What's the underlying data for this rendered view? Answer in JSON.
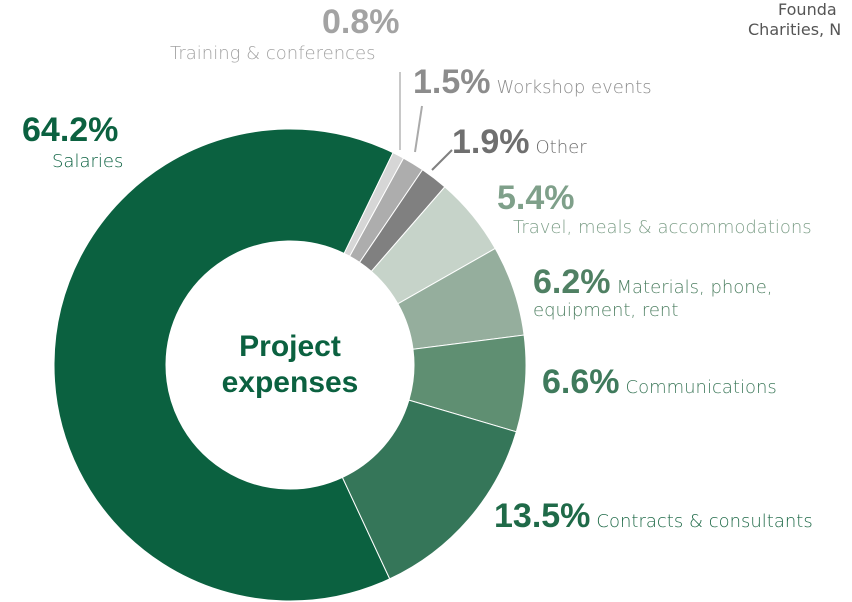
{
  "chart_data": {
    "type": "pie",
    "center_label": [
      "Project",
      "expenses"
    ],
    "categories": [
      "Salaries",
      "Training & conferences",
      "Workshop events",
      "Other",
      "Travel, meals & accommodations",
      "Materials, phone, equipment, rent",
      "Communications",
      "Contracts & consultants"
    ],
    "values": [
      64.2,
      0.8,
      1.5,
      1.9,
      5.4,
      6.2,
      6.6,
      13.5
    ],
    "value_labels": [
      "64.2%",
      "0.8%",
      "1.5%",
      "1.9%",
      "5.4%",
      "6.2%",
      "6.6%",
      "13.5%"
    ],
    "colors": [
      "#0b6140",
      "#d6d6d6",
      "#adadad",
      "#808080",
      "#c6d3c9",
      "#95ae9d",
      "#5f8f72",
      "#357659"
    ],
    "annotations": [
      "Founda",
      "Charities, N"
    ]
  }
}
